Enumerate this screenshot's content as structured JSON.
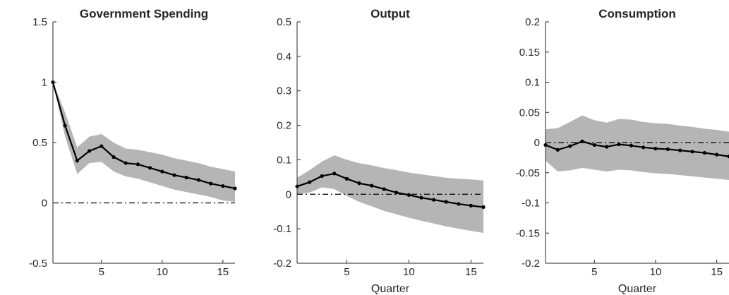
{
  "colors": {
    "band": "#b5b5b5",
    "line": "#000000",
    "zero_line": "#000000",
    "axis": "#262626"
  },
  "chart_data": [
    {
      "type": "line",
      "title": "Government Spending",
      "xlabel": "",
      "ylabel": "",
      "xlim": [
        1,
        16
      ],
      "ylim": [
        -0.5,
        1.5
      ],
      "xticks": [
        5,
        10,
        15
      ],
      "xtick_labels": [
        "5",
        "10",
        "15"
      ],
      "yticks": [
        -0.5,
        0,
        0.5,
        1,
        1.5
      ],
      "ytick_labels": [
        "-0.5",
        "0",
        "0.5",
        "1",
        "1.5"
      ],
      "zero_line": 0,
      "x": [
        1,
        2,
        3,
        4,
        5,
        6,
        7,
        8,
        9,
        10,
        11,
        12,
        13,
        14,
        15,
        16
      ],
      "y": [
        1.0,
        0.64,
        0.35,
        0.43,
        0.47,
        0.38,
        0.33,
        0.32,
        0.29,
        0.26,
        0.23,
        0.21,
        0.19,
        0.16,
        0.14,
        0.12
      ],
      "lower": [
        1.0,
        0.55,
        0.24,
        0.33,
        0.34,
        0.26,
        0.22,
        0.2,
        0.17,
        0.14,
        0.11,
        0.09,
        0.07,
        0.05,
        0.02,
        0.01
      ],
      "upper": [
        1.0,
        0.75,
        0.46,
        0.55,
        0.57,
        0.5,
        0.45,
        0.44,
        0.42,
        0.4,
        0.37,
        0.35,
        0.33,
        0.3,
        0.28,
        0.26
      ]
    },
    {
      "type": "line",
      "title": "Output",
      "xlabel": "Quarter",
      "ylabel": "",
      "xlim": [
        1,
        16
      ],
      "ylim": [
        -0.2,
        0.5
      ],
      "xticks": [
        5,
        10,
        15
      ],
      "xtick_labels": [
        "5",
        "10",
        "15"
      ],
      "yticks": [
        -0.2,
        -0.1,
        0,
        0.1,
        0.2,
        0.3,
        0.4,
        0.5
      ],
      "ytick_labels": [
        "-0.2",
        "-0.1",
        "0",
        "0.1",
        "0.2",
        "0.3",
        "0.4",
        "0.5"
      ],
      "zero_line": 0,
      "x": [
        1,
        2,
        3,
        4,
        5,
        6,
        7,
        8,
        9,
        10,
        11,
        12,
        13,
        14,
        15,
        16
      ],
      "y": [
        0.023,
        0.035,
        0.053,
        0.06,
        0.045,
        0.032,
        0.025,
        0.015,
        0.005,
        -0.002,
        -0.01,
        -0.016,
        -0.022,
        -0.028,
        -0.033,
        -0.037
      ],
      "lower": [
        0.0,
        0.005,
        0.02,
        0.015,
        -0.005,
        -0.022,
        -0.035,
        -0.048,
        -0.058,
        -0.068,
        -0.077,
        -0.085,
        -0.093,
        -0.1,
        -0.106,
        -0.112
      ],
      "upper": [
        0.048,
        0.07,
        0.095,
        0.113,
        0.1,
        0.09,
        0.084,
        0.076,
        0.07,
        0.063,
        0.058,
        0.053,
        0.048,
        0.045,
        0.043,
        0.04
      ]
    },
    {
      "type": "line",
      "title": "Consumption",
      "xlabel": "Quarter",
      "ylabel": "",
      "xlim": [
        1,
        16
      ],
      "ylim": [
        -0.2,
        0.2
      ],
      "xticks": [
        5,
        10,
        15
      ],
      "xtick_labels": [
        "5",
        "10",
        "15"
      ],
      "yticks": [
        -0.2,
        -0.15,
        -0.1,
        -0.05,
        0,
        0.05,
        0.1,
        0.15,
        0.2
      ],
      "ytick_labels": [
        "-0.2",
        "-0.15",
        "-0.1",
        "-0.05",
        "0",
        "0.05",
        "0.1",
        "0.15",
        "0.2"
      ],
      "zero_line": 0,
      "x": [
        1,
        2,
        3,
        4,
        5,
        6,
        7,
        8,
        9,
        10,
        11,
        12,
        13,
        14,
        15,
        16
      ],
      "y": [
        -0.004,
        -0.012,
        -0.006,
        0.002,
        -0.004,
        -0.007,
        -0.003,
        -0.005,
        -0.008,
        -0.01,
        -0.011,
        -0.013,
        -0.015,
        -0.017,
        -0.02,
        -0.023
      ],
      "lower": [
        -0.03,
        -0.048,
        -0.046,
        -0.042,
        -0.045,
        -0.048,
        -0.045,
        -0.046,
        -0.049,
        -0.051,
        -0.052,
        -0.054,
        -0.056,
        -0.058,
        -0.06,
        -0.062
      ],
      "upper": [
        0.022,
        0.024,
        0.034,
        0.045,
        0.037,
        0.033,
        0.039,
        0.038,
        0.034,
        0.032,
        0.031,
        0.028,
        0.026,
        0.023,
        0.021,
        0.018
      ]
    }
  ]
}
